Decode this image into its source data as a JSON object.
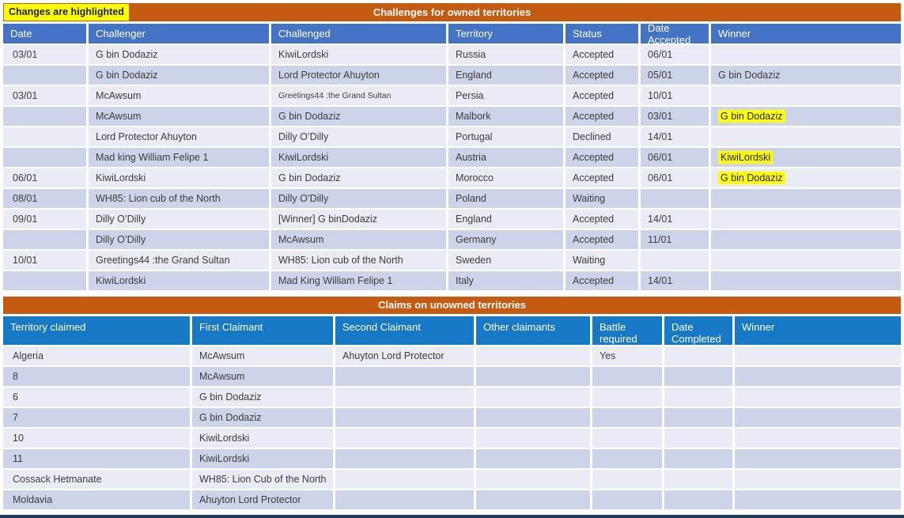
{
  "page": {
    "note": "Changes are highlighted",
    "colors": {
      "title_bar": "#C55A11",
      "table1_header": "#4472C4",
      "table2_header": "#1778C6",
      "row_light": "#E9EBF5",
      "row_dark": "#CDD3E8",
      "highlight": "#FFFF00",
      "bottom_strip": "#1E3A5F"
    }
  },
  "challenges": {
    "title": "Challenges for owned territories",
    "headers": [
      "Date",
      "Challenger",
      "Challenged",
      "Territory",
      "Status",
      "Date Accepted",
      "Winner"
    ],
    "rows": [
      [
        "03/01",
        "G bin Dodaziz",
        "KiwiLordski",
        "Russia",
        "Accepted",
        "06/01",
        ""
      ],
      [
        "",
        "G bin Dodaziz",
        "Lord Protector Ahuyton",
        "England",
        "Accepted",
        "05/01",
        "G bin Dodaziz"
      ],
      [
        "03/01",
        "McAwsum",
        {
          "text": "Greetings44 :the Grand Sultan",
          "small": true
        },
        "Persia",
        "Accepted",
        "10/01",
        ""
      ],
      [
        "",
        "McAwsum",
        "G bin Dodaziz",
        "Malbork",
        "Accepted",
        "03/01",
        {
          "text": "G bin Dodaziz",
          "highlighted": true
        }
      ],
      [
        "",
        "Lord Protector Ahuyton",
        "Dilly O’Dilly",
        "Portugal",
        "Declined",
        "14/01",
        ""
      ],
      [
        "",
        "Mad king William Felipe 1",
        "KiwiLordski",
        "Austria",
        "Accepted",
        "06/01",
        {
          "text": "KiwiLordski",
          "highlighted": true
        }
      ],
      [
        "06/01",
        "KiwiLordski",
        "G bin Dodaziz",
        "Morocco",
        "Accepted",
        "06/01",
        {
          "text": "G bin Dodaziz",
          "highlighted": true
        }
      ],
      [
        "08/01",
        "WH85: Lion cub of the North",
        "Dilly O’Dilly",
        "Poland",
        "Waiting",
        "",
        ""
      ],
      [
        "09/01",
        "Dilly O’Dilly",
        "[Winner]  G binDodaziz",
        "England",
        "Accepted",
        "14/01",
        ""
      ],
      [
        "",
        "Dilly O’Dilly",
        "McAwsum",
        "Germany",
        "Accepted",
        "11/01",
        ""
      ],
      [
        "10/01",
        "Greetings44 :the Grand Sultan",
        "WH85: Lion cub of the North",
        "Sweden",
        "Waiting",
        "",
        ""
      ],
      [
        "",
        "KiwiLordski",
        "Mad King William Felipe 1",
        "Italy",
        "Accepted",
        "14/01",
        ""
      ]
    ]
  },
  "claims": {
    "title": "Claims on unowned territories",
    "headers": [
      "Territory claimed",
      "First Claimant",
      "Second Claimant",
      "Other claimants",
      "Battle required",
      "Date Completed",
      "Winner"
    ],
    "rows": [
      [
        "Algeria",
        "McAwsum",
        "Ahuyton  Lord Protector",
        "",
        "Yes",
        "",
        ""
      ],
      [
        "8",
        "McAwsum",
        "",
        "",
        "",
        "",
        ""
      ],
      [
        "6",
        "G bin Dodaziz",
        "",
        "",
        "",
        "",
        ""
      ],
      [
        "7",
        "G bin Dodaziz",
        "",
        "",
        "",
        "",
        ""
      ],
      [
        "10",
        "KiwiLordski",
        "",
        "",
        "",
        "",
        ""
      ],
      [
        "11",
        "KiwiLordski",
        "",
        "",
        "",
        "",
        ""
      ],
      [
        "Cossack  Hetmanate",
        "WH85: Lion Cub of the North",
        "",
        "",
        "",
        "",
        ""
      ],
      [
        "Moldavia",
        "Ahuyton Lord Protector",
        "",
        "",
        "",
        "",
        ""
      ]
    ]
  }
}
